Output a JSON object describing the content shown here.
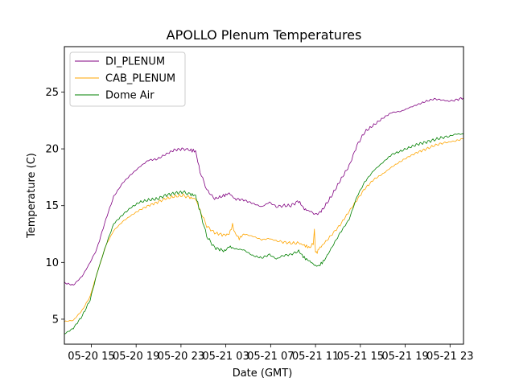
{
  "chart_data": {
    "type": "line",
    "title": "APOLLO Plenum Temperatures",
    "xlabel": "Date (GMT)",
    "ylabel": "Temperature (C)",
    "xlim": [
      12.6,
      48.2
    ],
    "ylim": [
      2.8,
      29.0
    ],
    "x_units": "hours since 05-20 00:00 GMT",
    "xticks": [
      {
        "value": 15,
        "label": "05-20 15"
      },
      {
        "value": 19,
        "label": "05-20 19"
      },
      {
        "value": 23,
        "label": "05-20 23"
      },
      {
        "value": 27,
        "label": "05-21 03"
      },
      {
        "value": 31,
        "label": "05-21 07"
      },
      {
        "value": 35,
        "label": "05-21 11"
      },
      {
        "value": 39,
        "label": "05-21 15"
      },
      {
        "value": 43,
        "label": "05-21 19"
      },
      {
        "value": 47,
        "label": "05-21 23"
      }
    ],
    "yticks": [
      5,
      10,
      15,
      20,
      25
    ],
    "grid": false,
    "legend_position": "top-left",
    "series": [
      {
        "name": "DI_PLENUM",
        "color": "#800080",
        "x": [
          12.6,
          13.4,
          14.2,
          14.9,
          15.5,
          16.3,
          17.0,
          17.8,
          18.5,
          19.3,
          20.1,
          20.9,
          21.6,
          22.4,
          23.2,
          23.8,
          24.3,
          24.7,
          25.3,
          26.0,
          26.9,
          27.3,
          27.8,
          28.6,
          29.4,
          30.2,
          30.9,
          31.5,
          32.1,
          32.8,
          33.5,
          34.0,
          34.5,
          35.1,
          35.6,
          36.4,
          37.2,
          38.0,
          38.7,
          39.4,
          40.2,
          41.0,
          41.8,
          42.6,
          43.3,
          44.1,
          44.9,
          45.6,
          46.3,
          46.9,
          47.5,
          48.2
        ],
        "y": [
          8.2,
          8.0,
          8.8,
          10.0,
          11.2,
          13.8,
          15.8,
          17.0,
          17.7,
          18.4,
          19.0,
          19.1,
          19.5,
          19.9,
          20.0,
          19.9,
          19.8,
          18.0,
          16.4,
          15.6,
          15.9,
          16.1,
          15.6,
          15.5,
          15.2,
          14.9,
          15.3,
          14.9,
          15.0,
          15.0,
          15.4,
          14.7,
          14.5,
          14.2,
          14.6,
          15.8,
          17.2,
          18.5,
          20.3,
          21.5,
          22.1,
          22.7,
          23.2,
          23.3,
          23.6,
          23.9,
          24.2,
          24.4,
          24.3,
          24.2,
          24.3,
          24.5
        ]
      },
      {
        "name": "CAB_PLENUM",
        "color": "#ffa500",
        "x": [
          12.6,
          13.4,
          14.2,
          14.9,
          15.5,
          16.3,
          17.0,
          17.8,
          18.5,
          19.3,
          20.1,
          20.9,
          21.6,
          22.4,
          23.2,
          23.8,
          24.3,
          24.7,
          25.3,
          26.0,
          26.9,
          27.3,
          27.6,
          27.8,
          28.2,
          28.6,
          29.4,
          30.2,
          30.9,
          31.5,
          32.1,
          32.8,
          33.5,
          34.0,
          34.5,
          34.8,
          34.9,
          35.0,
          35.15,
          35.3,
          35.8,
          36.5,
          37.2,
          38.0,
          38.7,
          39.4,
          40.2,
          41.0,
          41.8,
          42.6,
          43.3,
          44.1,
          44.9,
          45.6,
          46.3,
          46.9,
          47.5,
          48.2
        ],
        "y": [
          4.8,
          4.9,
          5.8,
          7.0,
          9.0,
          11.5,
          12.8,
          13.6,
          14.1,
          14.6,
          15.0,
          15.3,
          15.6,
          15.8,
          15.9,
          15.7,
          15.6,
          14.6,
          13.2,
          12.6,
          12.4,
          12.5,
          13.3,
          12.6,
          12.1,
          12.5,
          12.3,
          12.0,
          12.1,
          11.9,
          11.8,
          11.7,
          11.7,
          11.5,
          11.3,
          11.7,
          12.8,
          11.0,
          10.9,
          11.2,
          11.7,
          12.5,
          13.3,
          14.5,
          15.5,
          16.5,
          17.3,
          17.8,
          18.4,
          18.9,
          19.3,
          19.7,
          20.0,
          20.3,
          20.5,
          20.6,
          20.7,
          20.9
        ]
      },
      {
        "name": "Dome Air",
        "color": "#008000",
        "x": [
          12.6,
          13.4,
          14.2,
          14.9,
          15.5,
          16.3,
          17.0,
          17.8,
          18.5,
          19.3,
          20.1,
          20.9,
          21.6,
          22.4,
          23.2,
          23.8,
          24.3,
          24.7,
          25.3,
          26.0,
          26.9,
          27.3,
          27.8,
          28.6,
          29.4,
          30.2,
          30.9,
          31.5,
          32.1,
          32.8,
          33.5,
          34.0,
          34.5,
          35.0,
          35.3,
          35.8,
          36.5,
          37.2,
          38.0,
          38.7,
          39.4,
          40.2,
          41.0,
          41.8,
          42.6,
          43.3,
          44.1,
          44.9,
          45.6,
          46.3,
          46.9,
          47.5,
          48.2
        ],
        "y": [
          3.7,
          4.2,
          5.3,
          6.7,
          9.0,
          11.5,
          13.4,
          14.2,
          14.8,
          15.3,
          15.5,
          15.6,
          15.9,
          16.1,
          16.2,
          16.0,
          15.9,
          14.5,
          12.3,
          11.3,
          11.0,
          11.4,
          11.2,
          11.1,
          10.6,
          10.4,
          10.7,
          10.3,
          10.6,
          10.7,
          11.0,
          10.4,
          10.1,
          9.7,
          9.7,
          10.2,
          11.4,
          12.6,
          13.8,
          15.8,
          17.1,
          18.1,
          18.8,
          19.5,
          19.8,
          20.1,
          20.4,
          20.6,
          20.8,
          21.0,
          21.1,
          21.3,
          21.3
        ]
      }
    ]
  }
}
